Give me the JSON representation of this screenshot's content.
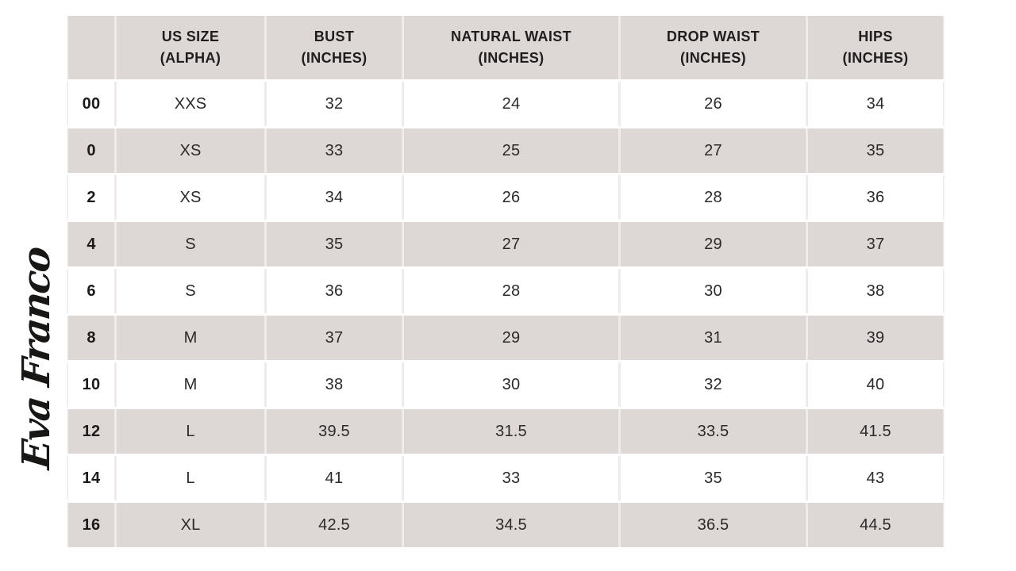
{
  "logo": {
    "brand": "Eva Franco"
  },
  "colors": {
    "row_shade": "#DDD8D6",
    "hairline": "#EEEBEA",
    "text": "#2B2929",
    "background": "#FFFFFF"
  },
  "chart_data": {
    "type": "table",
    "units": "inches",
    "columns": [
      "",
      "US SIZE\n(ALPHA)",
      "BUST\n(INCHES)",
      "NATURAL WAIST\n(INCHES)",
      "DROP WAIST\n(INCHES)",
      "HIPS\n(INCHES)"
    ],
    "rows": [
      [
        "00",
        "XXS",
        "32",
        "24",
        "26",
        "34"
      ],
      [
        "0",
        "XS",
        "33",
        "25",
        "27",
        "35"
      ],
      [
        "2",
        "XS",
        "34",
        "26",
        "28",
        "36"
      ],
      [
        "4",
        "S",
        "35",
        "27",
        "29",
        "37"
      ],
      [
        "6",
        "S",
        "36",
        "28",
        "30",
        "38"
      ],
      [
        "8",
        "M",
        "37",
        "29",
        "31",
        "39"
      ],
      [
        "10",
        "M",
        "38",
        "30",
        "32",
        "40"
      ],
      [
        "12",
        "L",
        "39.5",
        "31.5",
        "33.5",
        "41.5"
      ],
      [
        "14",
        "L",
        "41",
        "33",
        "35",
        "43"
      ],
      [
        "16",
        "XL",
        "42.5",
        "34.5",
        "36.5",
        "44.5"
      ]
    ]
  }
}
